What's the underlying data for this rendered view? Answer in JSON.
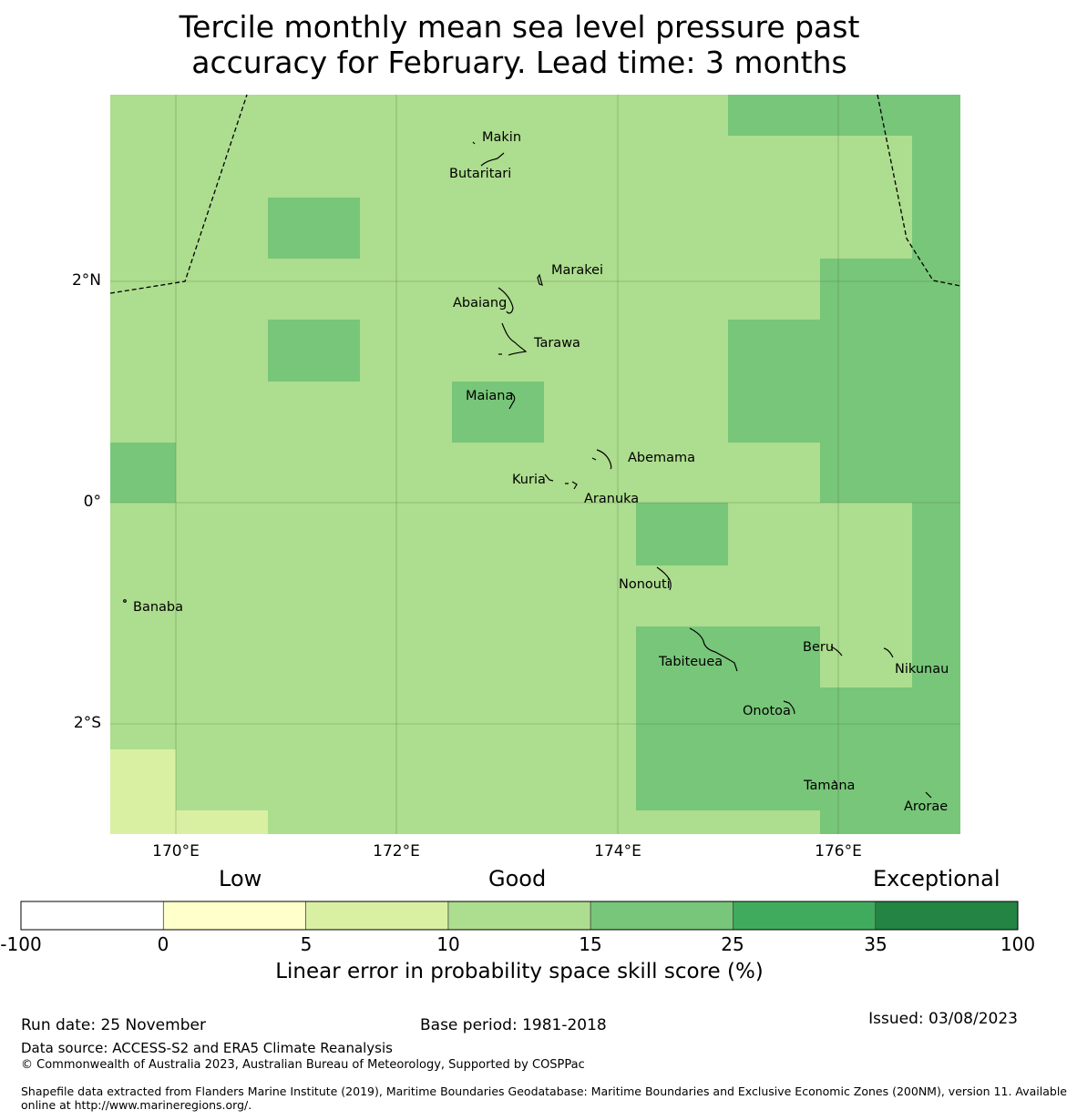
{
  "title": {
    "line1": "Tercile monthly mean sea level pressure past",
    "line2": "accuracy for February. Lead time: 3 months"
  },
  "map": {
    "lat_labels": [
      "2°N",
      "0°",
      "2°S"
    ],
    "lon_labels": [
      "170°E",
      "172°E",
      "174°E",
      "176°E"
    ],
    "places": [
      "Makin",
      "Butaritari",
      "Marakei",
      "Abaiang",
      "Tarawa",
      "Maiana",
      "Abemama",
      "Kuria",
      "Aranuka",
      "Nonouti",
      "Banaba",
      "Tabiteuea",
      "Beru",
      "Nikunau",
      "Onotoa",
      "Tamana",
      "Arorae"
    ]
  },
  "colorbar": {
    "categories": [
      "Low",
      "Good",
      "Exceptional"
    ],
    "ticks": [
      "-100",
      "0",
      "5",
      "10",
      "15",
      "25",
      "35",
      "100"
    ],
    "colors": [
      "#ffffff",
      "#ffffcc",
      "#d9f0a3",
      "#addd8e",
      "#78c679",
      "#41ab5d",
      "#238443"
    ],
    "label": "Linear error in probability space skill score (%)"
  },
  "footer": {
    "run_date": "Run date: 25 November",
    "base_period": "Base period: 1981-2018",
    "issued": "Issued: 03/08/2023",
    "data_source": "Data source: ACCESS-S2 and ERA5 Climate Reanalysis",
    "copyright": "© Commonwealth of Australia 2023, Australian Bureau of Meteorology, Supported by COSPPac",
    "shapefile_line1": "Shapefile data extracted from Flanders Marine Institute (2019), Maritime Boundaries Geodatabase: Maritime Boundaries and Exclusive Economic Zones (200NM), version 11. Available",
    "shapefile_line2": "online at http://www.marineregions.org/."
  }
}
